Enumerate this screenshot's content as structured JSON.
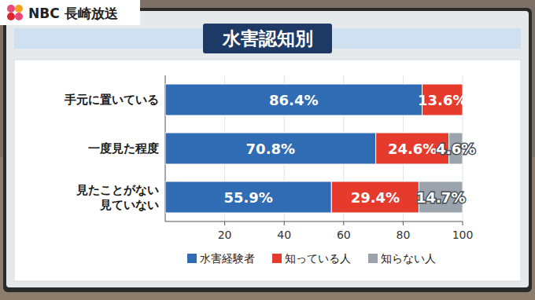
{
  "chart_data": {
    "type": "bar",
    "orientation": "horizontal",
    "stacked": true,
    "title": "水害認知別",
    "annotations": [
      "NBC 長崎放送"
    ],
    "categories": [
      "手元に置いている",
      "一度見た程度",
      "見たことがない\n見ていない"
    ],
    "series": [
      {
        "name": "水害経験者",
        "color": "#2f6cb3",
        "values": [
          86.4,
          70.8,
          55.9
        ],
        "value_labels": [
          "86.4%",
          "70.8%",
          "55.9%"
        ]
      },
      {
        "name": "知っている人",
        "color": "#e53a2c",
        "values": [
          13.6,
          24.6,
          29.4
        ],
        "value_labels": [
          "13.6%",
          "24.6%",
          "29.4%"
        ]
      },
      {
        "name": "知らない人",
        "color": "#9ba3ac",
        "values": [
          null,
          4.6,
          14.7
        ],
        "value_labels": [
          null,
          "4.6%",
          "14.7%"
        ]
      }
    ],
    "xlim": [
      0,
      100
    ],
    "xticks": [
      20,
      40,
      60,
      80,
      100
    ],
    "grid": true,
    "data_labels": true,
    "legend": "bottom"
  }
}
